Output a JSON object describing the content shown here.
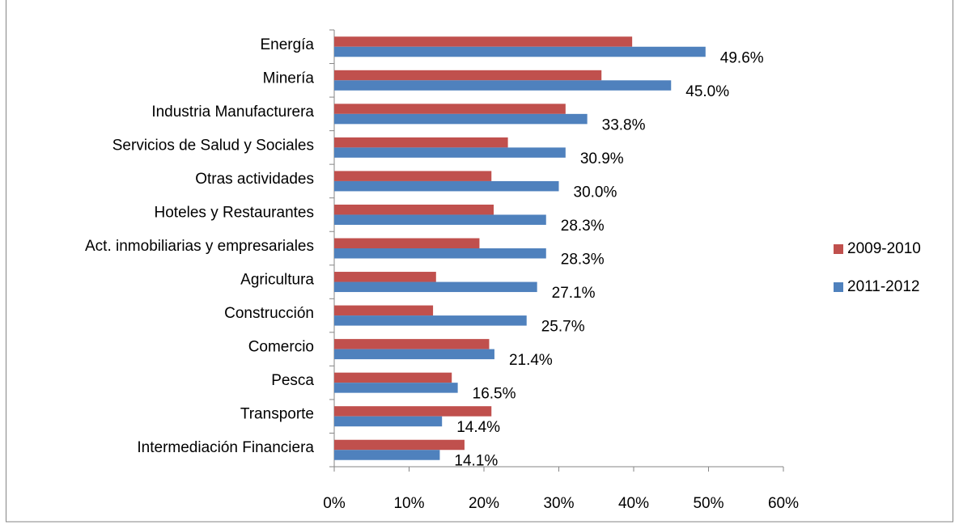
{
  "chart_data": {
    "type": "barh",
    "categories": [
      "Energía",
      "Minería",
      "Industria Manufacturera",
      "Servicios de Salud y Sociales",
      "Otras actividades",
      "Hoteles y Restaurantes",
      "Act. inmobiliarias y empresariales",
      "Agricultura ",
      "Construcción",
      "Comercio",
      "Pesca",
      "Transporte",
      "Intermediación Financiera"
    ],
    "series": [
      {
        "name": "2009-2010",
        "color": "#c0504d",
        "values": [
          39.8,
          35.7,
          30.9,
          23.2,
          21.0,
          21.3,
          19.4,
          13.6,
          13.2,
          20.7,
          15.7,
          21.0,
          17.4
        ]
      },
      {
        "name": "2011-2012",
        "color": "#4f81bd",
        "values": [
          49.6,
          45.0,
          33.8,
          30.9,
          30.0,
          28.3,
          28.3,
          27.1,
          25.7,
          21.4,
          16.5,
          14.4,
          14.1
        ],
        "value_labels": [
          "49.6%",
          "45.0%",
          "33.8%",
          "30.9%",
          "30.0%",
          "28.3%",
          "28.3%",
          "27.1%",
          "25.7%",
          "21.4%",
          "16.5%",
          "14.4%",
          "14.1%"
        ]
      }
    ],
    "xlim": [
      0,
      60
    ],
    "xticks": [
      {
        "value": 0,
        "label": "0%"
      },
      {
        "value": 10,
        "label": "10%"
      },
      {
        "value": 20,
        "label": "20%"
      },
      {
        "value": 30,
        "label": "30%"
      },
      {
        "value": 40,
        "label": "40%"
      },
      {
        "value": 50,
        "label": "50%"
      },
      {
        "value": 60,
        "label": "60%"
      }
    ],
    "legend": "right"
  }
}
